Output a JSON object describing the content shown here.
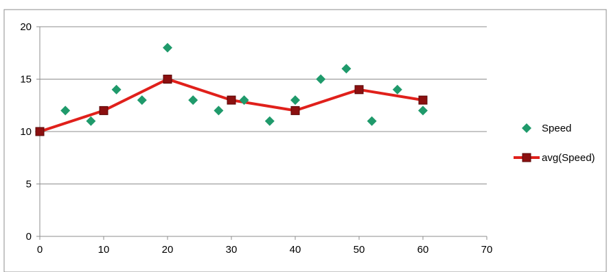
{
  "chart_data": {
    "type": "scatter",
    "title": "",
    "xlabel": "",
    "ylabel": "",
    "xlim": [
      0,
      70
    ],
    "ylim": [
      0,
      20
    ],
    "x_ticks": [
      0,
      10,
      20,
      30,
      40,
      50,
      60,
      70
    ],
    "y_ticks": [
      0,
      5,
      10,
      15,
      20
    ],
    "x_tick_labels": [
      "0",
      "10",
      "20",
      "30",
      "40",
      "50",
      "60",
      "70"
    ],
    "y_tick_labels": [
      "0",
      "5",
      "10",
      "15",
      "20"
    ],
    "grid": "horizontal",
    "legend_position": "right",
    "series": [
      {
        "name": "Speed",
        "kind": "scatter",
        "marker": "diamond",
        "color": "#1f9a6b",
        "x": [
          0,
          4,
          8,
          12,
          16,
          20,
          24,
          28,
          32,
          36,
          40,
          44,
          48,
          52,
          56,
          60
        ],
        "y": [
          10,
          12,
          11,
          14,
          13,
          18,
          13,
          12,
          13,
          11,
          13,
          15,
          16,
          11,
          14,
          12
        ]
      },
      {
        "name": "avg(Speed)",
        "kind": "line",
        "marker": "square",
        "color": "#e0201b",
        "marker_color": "#8b1010",
        "x": [
          0,
          10,
          20,
          30,
          40,
          50,
          60
        ],
        "y": [
          10,
          12,
          15,
          13,
          12,
          14,
          13
        ]
      }
    ]
  }
}
